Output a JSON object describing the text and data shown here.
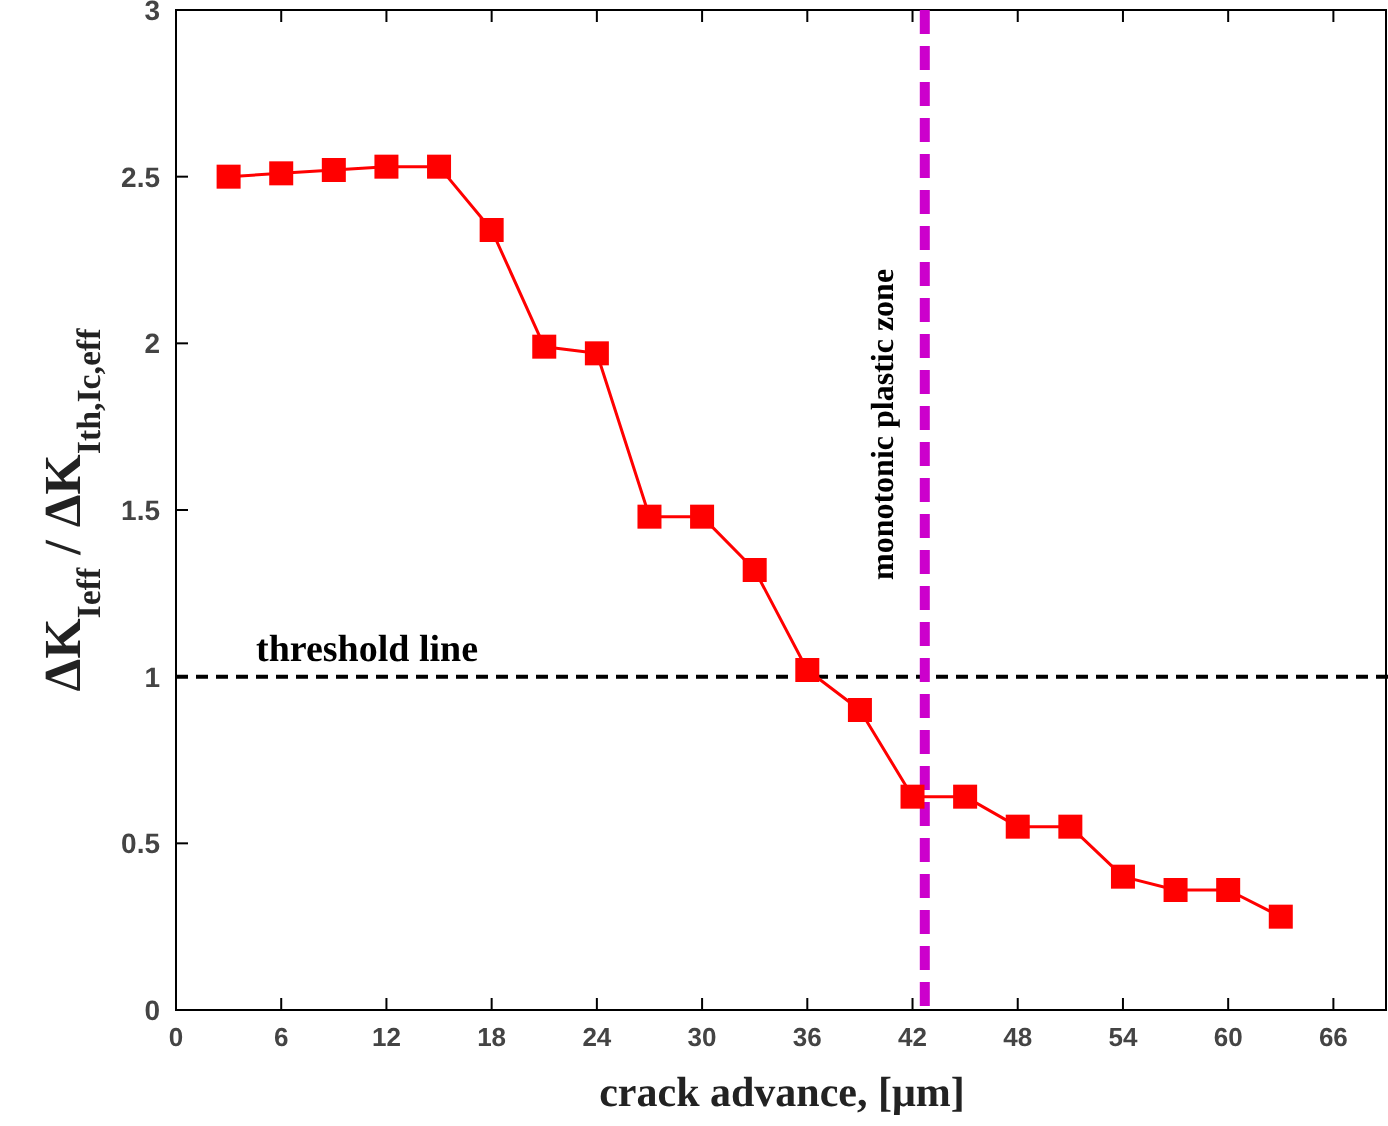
{
  "chart_data": {
    "type": "line",
    "xlabel": "crack advance, [μm]",
    "ylabel": "ΔK$_{Ieff}$ / ΔK$_{Ith,Ic,eff}$",
    "x": [
      3,
      6,
      9,
      12,
      15,
      18,
      21,
      24,
      27,
      30,
      33,
      36,
      39,
      42,
      45,
      48,
      51,
      54,
      57,
      60,
      63
    ],
    "series": [
      {
        "color": "#ff0000",
        "values": [
          2.5,
          2.51,
          2.52,
          2.53,
          2.53,
          2.34,
          1.99,
          1.97,
          1.48,
          1.48,
          1.32,
          1.02,
          0.9,
          0.64,
          0.64,
          0.55,
          0.55,
          0.4,
          0.36,
          0.36,
          0.28
        ]
      }
    ],
    "marker": "square",
    "line_style": "solid",
    "xlim": [
      0,
      69
    ],
    "xticks": [
      0,
      6,
      12,
      18,
      24,
      30,
      36,
      42,
      48,
      54,
      60,
      66
    ],
    "ylim": [
      0,
      3
    ],
    "yticks": [
      0,
      0.5,
      1,
      1.5,
      2,
      2.5,
      3
    ],
    "ref_lines": [
      {
        "axis": "y",
        "value": 1,
        "label": "threshold line",
        "color": "#000000",
        "line_style": "dashed"
      },
      {
        "axis": "x",
        "value": 42.7,
        "label": "monotonic plastic zone",
        "color": "#cc00cc",
        "line_style": "dashed"
      }
    ],
    "grid": false
  }
}
